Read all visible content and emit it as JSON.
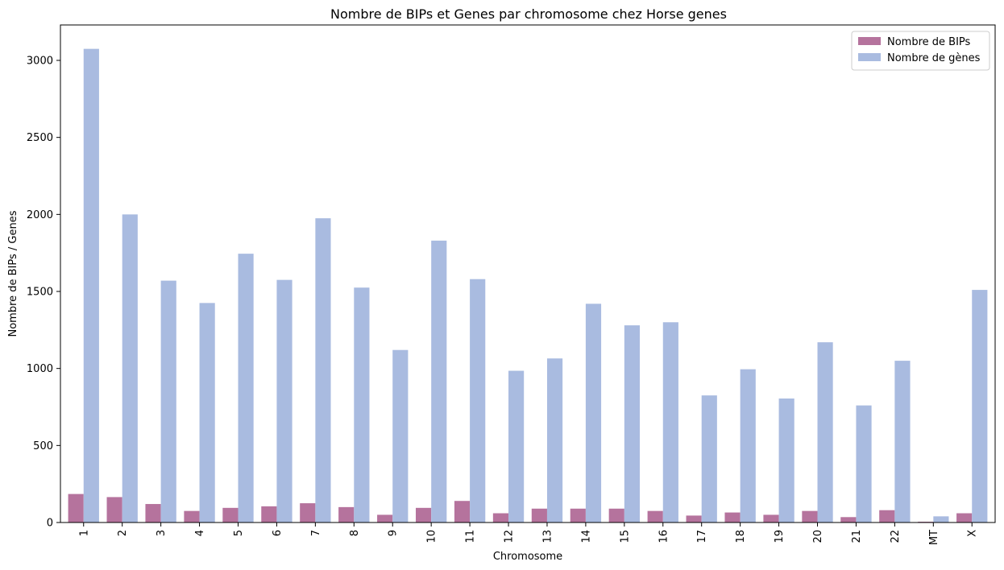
{
  "chart_data": {
    "type": "bar",
    "title": "Nombre de BIPs et Genes par chromosome chez Horse genes",
    "xlabel": "Chromosome",
    "ylabel": "Nombre de BIPs / Genes",
    "categories": [
      "1",
      "2",
      "3",
      "4",
      "5",
      "6",
      "7",
      "8",
      "9",
      "10",
      "11",
      "12",
      "13",
      "14",
      "15",
      "16",
      "17",
      "18",
      "19",
      "20",
      "21",
      "22",
      "MT",
      "X"
    ],
    "series": [
      {
        "name": "Nombre de BIPs",
        "color": "#b5739d",
        "values": [
          185,
          165,
          120,
          75,
          95,
          105,
          125,
          100,
          50,
          95,
          140,
          60,
          90,
          90,
          90,
          75,
          45,
          65,
          50,
          75,
          35,
          80,
          5,
          60
        ]
      },
      {
        "name": "Nombre de gènes",
        "color": "#a9bbe0",
        "values": [
          3075,
          2000,
          1570,
          1425,
          1745,
          1575,
          1975,
          1525,
          1120,
          1830,
          1580,
          985,
          1065,
          1420,
          1280,
          1300,
          825,
          995,
          805,
          1170,
          760,
          1050,
          40,
          1510
        ]
      }
    ],
    "ylim": [
      0,
      3230
    ],
    "yticks": [
      0,
      500,
      1000,
      1500,
      2000,
      2500,
      3000
    ],
    "grid": false,
    "legend_position": "top-right"
  }
}
